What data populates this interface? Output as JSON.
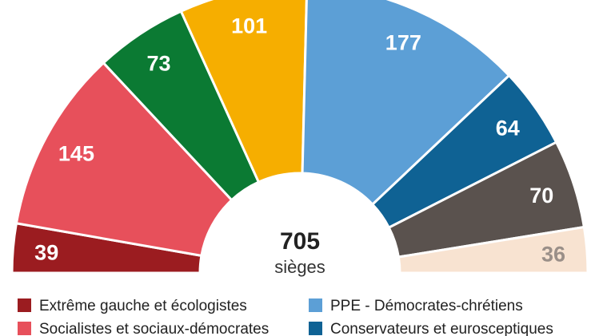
{
  "chart_data": {
    "type": "semicircle",
    "categories": [
      "Extrême gauche et écologistes",
      "Socialistes et sociaux-démocrates",
      null,
      null,
      "PPE - Démocrates-chrétiens",
      "Conservateurs et eurosceptiques",
      null,
      null
    ],
    "values": [
      39,
      145,
      73,
      101,
      177,
      64,
      70,
      36
    ],
    "colors": [
      "#9b1c20",
      "#e7505b",
      "#0b7a33",
      "#f6ae00",
      "#5c9fd6",
      "#0f6294",
      "#5a524e",
      "#f8e3d1"
    ],
    "total": 705,
    "total_label": "sièges"
  }
}
